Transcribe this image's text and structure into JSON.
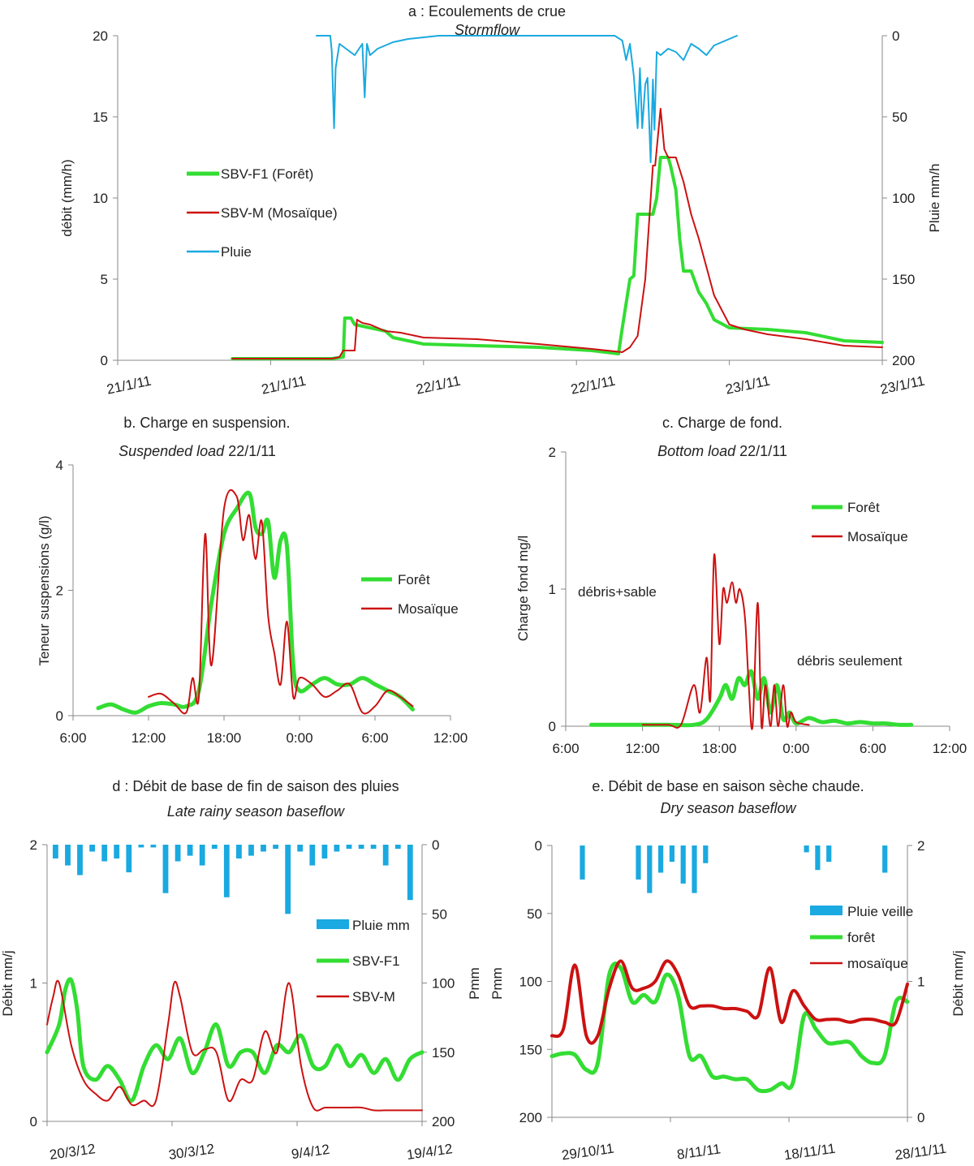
{
  "colors": {
    "green": "#33dd33",
    "red": "#cc1111",
    "blue": "#1aa9e0",
    "axis": "#888888",
    "text": "#222222"
  },
  "chart_data": [
    {
      "id": "a",
      "type": "line",
      "title": "a : Ecoulements de crue",
      "subtitle": "Stormflow",
      "ylabel": "débit (mm/h)",
      "y2label": "Pluie mm/h",
      "ylim": [
        0,
        20
      ],
      "y2lim": [
        0,
        200
      ],
      "y2_inverted": true,
      "yticks": [
        "0",
        "5",
        "10",
        "15",
        "20"
      ],
      "y2ticks": [
        "0",
        "50",
        "100",
        "150",
        "200"
      ],
      "xlim": [
        0,
        100
      ],
      "xticks": [
        "21/1/11",
        "21/1/11",
        "22/1/11",
        "22/1/11",
        "23/1/11",
        "23/1/11"
      ],
      "legend": [
        {
          "name": "SBV-F1 (Forêt)",
          "color": "green"
        },
        {
          "name": "SBV-M (Mosaïque)",
          "color": "red"
        },
        {
          "name": "Pluie",
          "color": "blue"
        }
      ],
      "series": [
        {
          "name": "SBV-F1 (Forêt)",
          "axis": "y",
          "color": "green",
          "x": [
            15,
            28,
            29.5,
            29.7,
            30.5,
            31,
            33,
            35,
            36,
            40,
            47,
            55,
            62,
            65.5,
            66,
            67,
            67.5,
            68,
            70,
            70.5,
            71,
            72,
            72.3,
            73,
            73.5,
            74,
            75,
            76,
            77,
            78,
            80,
            85,
            90,
            95,
            100
          ],
          "values": [
            0.1,
            0.1,
            0.2,
            2.6,
            2.6,
            2.2,
            2.0,
            1.8,
            1.4,
            1.0,
            0.9,
            0.8,
            0.6,
            0.4,
            2.0,
            5.0,
            5.2,
            9.0,
            9.0,
            10.0,
            12.5,
            12.5,
            12.0,
            10.5,
            7.5,
            5.5,
            5.5,
            4.2,
            3.5,
            2.5,
            2.0,
            1.9,
            1.7,
            1.2,
            1.1
          ]
        },
        {
          "name": "SBV-M (Mosaïque)",
          "axis": "y",
          "color": "red",
          "x": [
            15,
            28,
            29,
            29.5,
            30,
            31,
            31.3,
            32,
            33,
            35,
            37,
            40,
            47,
            55,
            62,
            66,
            67,
            68,
            69,
            70,
            70.3,
            71,
            71.5,
            72,
            73,
            74,
            75,
            76,
            78,
            80,
            82,
            85,
            90,
            95,
            100
          ],
          "values": [
            0.1,
            0.1,
            0.2,
            0.6,
            0.6,
            0.6,
            2.5,
            2.3,
            2.2,
            1.8,
            1.7,
            1.4,
            1.3,
            1.0,
            0.7,
            0.5,
            0.8,
            1.5,
            5.0,
            12.0,
            12.0,
            15.5,
            13.0,
            12.5,
            12.5,
            11.0,
            9.0,
            7.5,
            4.0,
            2.2,
            1.9,
            1.6,
            1.3,
            0.9,
            0.8
          ]
        },
        {
          "name": "Pluie",
          "axis": "y2",
          "color": "blue",
          "x": [
            26,
            27.8,
            28,
            28.3,
            28.5,
            29,
            31,
            32,
            32.3,
            32.6,
            33,
            34,
            35,
            36,
            38,
            42,
            60,
            65,
            66,
            66.5,
            67,
            67.5,
            68,
            68.3,
            68.6,
            69,
            69.3,
            69.7,
            70,
            70.2,
            70.5,
            71,
            72,
            73,
            74,
            75,
            76,
            77,
            78,
            79,
            80,
            81
          ],
          "values": [
            0,
            0,
            10,
            57,
            20,
            5,
            12,
            5,
            38,
            5,
            12,
            8,
            6,
            4,
            2,
            0,
            0,
            0,
            3,
            15,
            5,
            25,
            57,
            20,
            57,
            30,
            26,
            78,
            27,
            58,
            10,
            12,
            8,
            10,
            15,
            5,
            8,
            12,
            6,
            4,
            2,
            0
          ]
        }
      ]
    },
    {
      "id": "b",
      "type": "line",
      "title": "b. Charge en suspension.",
      "subtitle": "Suspended load 22/1/11",
      "subtitle_italic_part": "Suspended load",
      "ylabel": "Teneur  suspensions (g/l)",
      "ylim": [
        0,
        4
      ],
      "yticks": [
        "0",
        "2",
        "4"
      ],
      "xlim": [
        6,
        36
      ],
      "xticks": [
        "6:00",
        "12:00",
        "18:00",
        "0:00",
        "6:00",
        "12:00"
      ],
      "legend": [
        {
          "name": "Forêt",
          "color": "green"
        },
        {
          "name": "Mosaïque",
          "color": "red"
        }
      ],
      "series": [
        {
          "name": "Forêt",
          "color": "green",
          "x": [
            8,
            9,
            10,
            11,
            12,
            13,
            14,
            15,
            16,
            17,
            18,
            19,
            20,
            20.5,
            21,
            21.5,
            22,
            22.5,
            23,
            23.5,
            24,
            25,
            26,
            27,
            28,
            29,
            30,
            31,
            32,
            33
          ],
          "values": [
            0.12,
            0.18,
            0.1,
            0.05,
            0.15,
            0.2,
            0.18,
            0.15,
            0.4,
            1.8,
            2.9,
            3.3,
            3.55,
            3.0,
            2.9,
            3.1,
            2.2,
            2.8,
            2.7,
            0.8,
            0.4,
            0.5,
            0.6,
            0.5,
            0.5,
            0.6,
            0.5,
            0.4,
            0.3,
            0.1
          ]
        },
        {
          "name": "Mosaïque",
          "color": "red",
          "x": [
            12,
            13,
            14,
            15,
            15.5,
            16,
            16.5,
            17,
            18,
            19,
            19.5,
            20,
            20.5,
            21,
            21.5,
            22,
            22.5,
            23,
            23.5,
            24,
            25,
            26,
            27,
            28,
            29,
            30,
            31,
            32,
            33
          ],
          "values": [
            0.3,
            0.35,
            0.2,
            0.05,
            0.6,
            0.3,
            2.9,
            0.8,
            3.3,
            3.5,
            2.8,
            3.2,
            2.5,
            3.1,
            1.6,
            1.0,
            0.5,
            1.5,
            0.3,
            0.6,
            0.5,
            0.3,
            0.4,
            0.5,
            0.05,
            0.15,
            0.4,
            0.3,
            0.15
          ]
        }
      ]
    },
    {
      "id": "c",
      "type": "line",
      "title": "c. Charge de fond.",
      "subtitle": "Bottom load 22/1/11",
      "subtitle_italic_part": "Bottom load",
      "ylabel": "Charge fond mg/l",
      "ylim": [
        0,
        2
      ],
      "yticks": [
        "0",
        "1",
        "2"
      ],
      "xlim": [
        6,
        36
      ],
      "xticks": [
        "6:00",
        "12:00",
        "18:00",
        "0:00",
        "6:00",
        "12:00"
      ],
      "legend": [
        {
          "name": "Forêt",
          "color": "green"
        },
        {
          "name": "Mosaïque",
          "color": "red"
        }
      ],
      "annotations": [
        "débris+sable",
        "débris seulement"
      ],
      "series": [
        {
          "name": "Forêt",
          "color": "green",
          "x": [
            8,
            10,
            12,
            14,
            16,
            17,
            18,
            18.5,
            19,
            19.5,
            20,
            20.5,
            21,
            21.5,
            22,
            22.5,
            23,
            23.5,
            24,
            25,
            26,
            27,
            28,
            29,
            30,
            31,
            32,
            33
          ],
          "values": [
            0.01,
            0.01,
            0.01,
            0.01,
            0.01,
            0.05,
            0.2,
            0.3,
            0.2,
            0.35,
            0.3,
            0.4,
            0.2,
            0.35,
            0.1,
            0.3,
            0.05,
            0.1,
            0.02,
            0.06,
            0.03,
            0.04,
            0.02,
            0.03,
            0.02,
            0.02,
            0.01,
            0.01
          ]
        },
        {
          "name": "Mosaïque",
          "color": "red",
          "x": [
            12,
            14,
            15,
            16,
            16.5,
            17,
            17.3,
            17.6,
            18,
            18.3,
            18.6,
            19,
            19.3,
            19.6,
            20,
            20.3,
            20.6,
            21,
            21.3,
            21.6,
            22,
            22.3,
            22.6,
            23,
            23.3,
            23.6,
            24,
            25
          ],
          "values": [
            0.01,
            0.01,
            0.01,
            0.3,
            0.1,
            0.5,
            0.2,
            1.25,
            0.6,
            1.0,
            0.9,
            1.05,
            0.9,
            1.0,
            0.8,
            0.3,
            0.0,
            0.9,
            0.0,
            0.3,
            0.0,
            0.3,
            0.0,
            0.3,
            0.0,
            0.1,
            0.03,
            0.01
          ]
        }
      ]
    },
    {
      "id": "d",
      "type": "line",
      "title": "d : Débit de base de  fin de saison des pluies",
      "subtitle": "Late rainy season baseflow",
      "ylabel": "Débit mm/j",
      "y2label": "Pmm",
      "ylim": [
        0,
        2
      ],
      "y2lim": [
        0,
        200
      ],
      "y2_inverted": true,
      "yticks": [
        "0",
        "1",
        "2"
      ],
      "y2ticks": [
        "0",
        "50",
        "100",
        "150",
        "200"
      ],
      "xlim": [
        0,
        31
      ],
      "xticks": [
        "20/3/12",
        "30/3/12",
        "9/4/12",
        "19/4/12"
      ],
      "legend": [
        {
          "name": "Pluie  mm",
          "color": "blue"
        },
        {
          "name": "SBV-F1",
          "color": "green"
        },
        {
          "name": "SBV-M",
          "color": "red"
        }
      ],
      "bars": {
        "name": "Pluie  mm",
        "values": [
          10,
          15,
          22,
          5,
          12,
          10,
          20,
          2,
          2,
          35,
          12,
          8,
          15,
          3,
          38,
          10,
          8,
          5,
          3,
          50,
          5,
          15,
          10,
          5,
          3,
          3,
          3,
          15,
          3,
          40
        ]
      },
      "series": [
        {
          "name": "SBV-F1",
          "color": "green",
          "x": [
            0,
            1,
            1.5,
            2,
            2.5,
            3,
            4,
            5,
            6,
            7,
            8,
            9,
            10,
            11,
            12,
            13,
            14,
            15,
            16,
            17,
            18,
            19,
            20,
            21,
            22,
            23,
            24,
            25,
            26,
            27,
            28,
            29,
            30,
            31
          ],
          "values": [
            0.5,
            0.7,
            0.95,
            1.02,
            0.8,
            0.4,
            0.3,
            0.4,
            0.3,
            0.15,
            0.4,
            0.55,
            0.45,
            0.6,
            0.35,
            0.5,
            0.7,
            0.4,
            0.5,
            0.5,
            0.35,
            0.55,
            0.5,
            0.62,
            0.4,
            0.4,
            0.55,
            0.4,
            0.48,
            0.35,
            0.45,
            0.3,
            0.45,
            0.5
          ]
        },
        {
          "name": "SBV-M",
          "color": "red",
          "x": [
            0,
            0.5,
            1,
            2,
            3,
            4,
            5,
            6,
            7,
            8,
            9,
            10,
            10.5,
            11,
            12,
            13,
            14,
            15,
            16,
            17,
            18,
            19,
            20,
            21,
            22,
            23,
            24,
            25,
            26,
            27,
            28,
            29,
            30,
            31
          ],
          "values": [
            0.7,
            0.9,
            1.0,
            0.55,
            0.3,
            0.2,
            0.15,
            0.25,
            0.12,
            0.15,
            0.15,
            0.7,
            1.0,
            0.9,
            0.5,
            0.52,
            0.5,
            0.15,
            0.3,
            0.3,
            0.65,
            0.5,
            1.0,
            0.4,
            0.1,
            0.1,
            0.1,
            0.1,
            0.1,
            0.08,
            0.08,
            0.08,
            0.08,
            0.08
          ]
        }
      ]
    },
    {
      "id": "e",
      "type": "line",
      "title": "e. Débit de base en saison sèche chaude.",
      "subtitle": "Dry season baseflow",
      "ylabel": "Pmm",
      "y2label": "Débit mm/j",
      "ylim": [
        0,
        200
      ],
      "y_inverted": true,
      "y2lim": [
        0,
        2
      ],
      "yticks": [
        "0",
        "50",
        "100",
        "150",
        "200"
      ],
      "y2ticks": [
        "0",
        "1",
        "2"
      ],
      "xlim": [
        0,
        31
      ],
      "xticks": [
        "29/10/11",
        "8/11/11",
        "18/11/11",
        "28/11/11"
      ],
      "legend": [
        {
          "name": "Pluie veille",
          "color": "blue"
        },
        {
          "name": "forêt",
          "color": "green"
        },
        {
          "name": "mosaïque",
          "color": "red"
        }
      ],
      "bars": {
        "name": "Pluie veille",
        "values": [
          0,
          0,
          25,
          0,
          0,
          0,
          0,
          25,
          35,
          20,
          12,
          28,
          35,
          13,
          0,
          0,
          0,
          0,
          0,
          0,
          0,
          0,
          5,
          18,
          12,
          0,
          0,
          0,
          0,
          20,
          0
        ]
      },
      "series": [
        {
          "name": "forêt",
          "color": "green",
          "x": [
            0,
            1,
            2,
            3,
            4,
            5,
            6,
            7,
            8,
            9,
            10,
            11,
            12,
            13,
            14,
            15,
            16,
            17,
            18,
            19,
            20,
            21,
            22,
            23,
            24,
            25,
            26,
            27,
            28,
            29,
            30,
            31
          ],
          "values": [
            0.45,
            0.47,
            0.46,
            0.35,
            0.4,
            1.05,
            1.1,
            0.85,
            0.9,
            0.85,
            1.05,
            0.9,
            0.45,
            0.45,
            0.3,
            0.3,
            0.28,
            0.28,
            0.2,
            0.2,
            0.25,
            0.25,
            0.75,
            0.65,
            0.55,
            0.55,
            0.55,
            0.45,
            0.4,
            0.45,
            0.85,
            0.85
          ]
        },
        {
          "name": "mosaïque",
          "color": "red",
          "x": [
            0,
            1,
            2,
            3,
            4,
            5,
            6,
            7,
            8,
            9,
            10,
            11,
            12,
            13,
            14,
            15,
            16,
            17,
            18,
            19,
            20,
            21,
            22,
            23,
            24,
            25,
            26,
            27,
            28,
            29,
            30,
            31
          ],
          "values": [
            0.6,
            0.65,
            1.12,
            0.6,
            0.6,
            0.95,
            1.15,
            0.95,
            0.95,
            1.0,
            1.15,
            1.05,
            0.82,
            0.82,
            0.82,
            0.8,
            0.8,
            0.78,
            0.75,
            1.1,
            0.7,
            0.93,
            0.82,
            0.72,
            0.72,
            0.72,
            0.7,
            0.72,
            0.72,
            0.7,
            0.7,
            0.98
          ]
        }
      ]
    }
  ]
}
